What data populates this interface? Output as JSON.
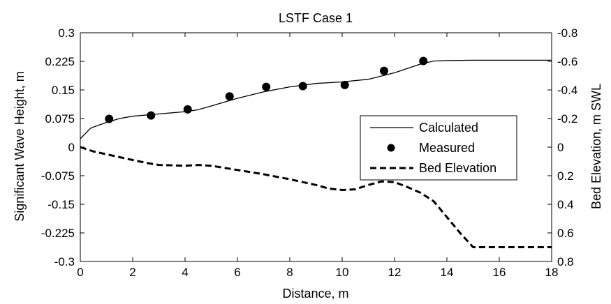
{
  "chart_data": {
    "type": "line",
    "title": "LSTF Case 1",
    "xlabel": "Distance, m",
    "ylabel_left": "Significant Wave Height, m",
    "ylabel_right": "Bed Elevation, m SWL",
    "xlim": [
      0,
      18
    ],
    "ylim_left": [
      -0.3,
      0.3
    ],
    "ylim_right": [
      0.8,
      -0.8
    ],
    "x_ticks": [
      "0",
      "2",
      "4",
      "6",
      "8",
      "10",
      "12",
      "14",
      "16",
      "18"
    ],
    "y_ticks_left": [
      "0.3",
      "0.225",
      "0.15",
      "0.075",
      "0",
      "-0.075",
      "-0.15",
      "-0.225",
      "-0.3"
    ],
    "y_ticks_right": [
      "-0.8",
      "-0.6",
      "-0.4",
      "-0.2",
      "0",
      "0.2",
      "0.4",
      "0.6",
      "0.8"
    ],
    "grid": false,
    "legend_position": "right-center",
    "series": [
      {
        "name": "Calculated",
        "axis": "left",
        "style": "solid-line",
        "color": "#000000",
        "points": [
          [
            0,
            0.022
          ],
          [
            0.4,
            0.05
          ],
          [
            1,
            0.065
          ],
          [
            1.5,
            0.075
          ],
          [
            2,
            0.081
          ],
          [
            3,
            0.087
          ],
          [
            4,
            0.093
          ],
          [
            4.5,
            0.098
          ],
          [
            5,
            0.108
          ],
          [
            6,
            0.128
          ],
          [
            7,
            0.145
          ],
          [
            8,
            0.158
          ],
          [
            9,
            0.167
          ],
          [
            10,
            0.171
          ],
          [
            11,
            0.178
          ],
          [
            12,
            0.195
          ],
          [
            13,
            0.218
          ],
          [
            13.5,
            0.226
          ],
          [
            14,
            0.227
          ],
          [
            15,
            0.228
          ],
          [
            16,
            0.228
          ],
          [
            17,
            0.228
          ],
          [
            18,
            0.228
          ]
        ]
      },
      {
        "name": "Measured",
        "axis": "left",
        "style": "marker-circle",
        "color": "#000000",
        "points": [
          [
            1.1,
            0.074
          ],
          [
            2.7,
            0.083
          ],
          [
            4.1,
            0.099
          ],
          [
            5.7,
            0.133
          ],
          [
            7.1,
            0.158
          ],
          [
            8.5,
            0.16
          ],
          [
            10.1,
            0.163
          ],
          [
            11.6,
            0.2
          ],
          [
            13.1,
            0.226
          ]
        ]
      },
      {
        "name": "Bed Elevation",
        "axis": "right",
        "style": "dashed-line",
        "color": "#000000",
        "points": [
          [
            0,
            0
          ],
          [
            0.5,
            0.03
          ],
          [
            1,
            0.05
          ],
          [
            2,
            0.09
          ],
          [
            2.5,
            0.11
          ],
          [
            3,
            0.125
          ],
          [
            4,
            0.13
          ],
          [
            4.5,
            0.125
          ],
          [
            5,
            0.13
          ],
          [
            6,
            0.16
          ],
          [
            7,
            0.19
          ],
          [
            8,
            0.225
          ],
          [
            9,
            0.265
          ],
          [
            9.5,
            0.29
          ],
          [
            10,
            0.3
          ],
          [
            10.5,
            0.295
          ],
          [
            11,
            0.265
          ],
          [
            11.5,
            0.24
          ],
          [
            12,
            0.245
          ],
          [
            12.5,
            0.28
          ],
          [
            13,
            0.32
          ],
          [
            13.5,
            0.38
          ],
          [
            14,
            0.49
          ],
          [
            14.5,
            0.6
          ],
          [
            15,
            0.7
          ],
          [
            16,
            0.7
          ],
          [
            17,
            0.7
          ],
          [
            18,
            0.7
          ]
        ]
      }
    ]
  }
}
